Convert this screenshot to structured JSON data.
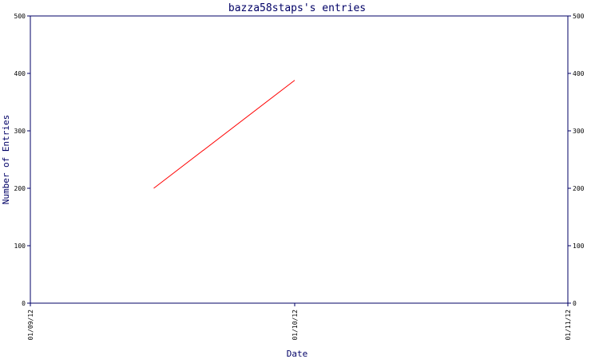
{
  "chart_data": {
    "type": "line",
    "title": "bazza58staps's entries",
    "xlabel": "Date",
    "ylabel": "Number of Entries",
    "x_ticks": [
      "01/09/12",
      "01/10/12",
      "01/11/12"
    ],
    "y_ticks": [
      "0",
      "100",
      "200",
      "300",
      "400",
      "500"
    ],
    "ylim": [
      0,
      500
    ],
    "grid": false,
    "series": [
      {
        "x": [
          "2012-09-15",
          "2012-10-01"
        ],
        "values": [
          200,
          388
        ]
      }
    ],
    "colors": {
      "axis": "#000066",
      "line": "#ff0000",
      "text": "#000066"
    }
  }
}
